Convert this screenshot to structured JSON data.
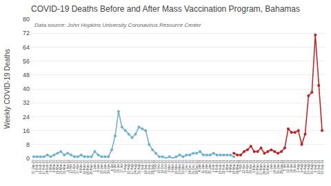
{
  "chart_data": {
    "type": "line",
    "title": "COVID-19 Deaths Before and After Mass Vaccination Program, Bahamas",
    "y_label": "Weekly COVID-19 Deaths",
    "annotations": [
      "Data source: John Hopkins University Coronavirus Resource Center"
    ],
    "categories": [
      "27-Jan-20",
      "3-Feb-20",
      "10-Feb-20",
      "17-Feb-20",
      "24-Feb-20",
      "2-Mar-20",
      "9-Mar-20",
      "16-Mar-20",
      "23-Mar-20",
      "30-Mar-20",
      "6-Apr-20",
      "13-Apr-20",
      "20-Apr-20",
      "27-Apr-20",
      "4-May-20",
      "11-May-20",
      "18-May-20",
      "25-May-20",
      "1-Jun-20",
      "8-Jun-20",
      "15-Jun-20",
      "22-Jun-20",
      "29-Jun-20",
      "6-Jul-20",
      "13-Jul-20",
      "20-Jul-20",
      "27-Jul-20",
      "3-Aug-20",
      "10-Aug-20",
      "17-Aug-20",
      "24-Aug-20",
      "31-Aug-20",
      "7-Sep-20",
      "14-Sep-20",
      "21-Sep-20",
      "28-Sep-20",
      "5-Oct-20",
      "12-Oct-20",
      "19-Oct-20",
      "26-Oct-20",
      "2-Nov-20",
      "9-Nov-20",
      "16-Nov-20",
      "23-Nov-20",
      "30-Nov-20",
      "7-Dec-20",
      "14-Dec-20",
      "21-Dec-20",
      "28-Dec-20",
      "4-Jan-21",
      "11-Jan-21",
      "18-Jan-21",
      "25-Jan-21",
      "1-Feb-21",
      "8-Feb-21",
      "15-Feb-21",
      "22-Feb-21",
      "1-Mar-21",
      "8-Mar-21",
      "15-Mar-21",
      "29-Mar-21",
      "5-Apr-21",
      "12-Apr-21",
      "19-Apr-21",
      "26-Apr-21",
      "3-May-21",
      "10-May-21",
      "17-May-21",
      "24-May-21",
      "31-May-21",
      "7-Jun-21",
      "14-Jun-21",
      "21-Jun-21",
      "28-Jun-21",
      "5-Jul-21",
      "12-Jul-21",
      "19-Jul-21",
      "26-Jul-21",
      "2-Aug-21",
      "9-Aug-21",
      "16-Aug-21",
      "23-Aug-21",
      "30-Aug-21",
      "6-Sep-21",
      "13-Sep-21",
      "20-Sep-21"
    ],
    "series": [
      {
        "color": "#6baed6",
        "marker": "circle",
        "values": [
          1,
          1,
          1,
          1,
          2,
          1,
          2,
          3,
          4,
          2,
          3,
          2,
          1,
          1,
          2,
          1,
          1,
          1,
          4,
          2,
          1,
          1,
          1,
          5,
          13,
          27,
          18,
          16,
          14,
          12,
          14,
          18,
          17,
          16,
          8,
          5,
          3,
          1,
          1,
          0,
          1,
          0,
          1,
          2,
          1,
          2,
          2,
          3,
          3,
          4,
          2,
          2,
          2,
          3,
          2,
          2,
          2,
          2,
          2,
          1,
          null,
          null,
          null,
          null,
          null,
          null,
          null,
          null,
          null,
          null,
          null,
          null,
          null,
          null,
          null,
          null,
          null,
          null,
          null,
          null,
          null,
          null,
          null,
          null,
          null,
          null
        ]
      },
      {
        "color": "#cb181d",
        "marker": "circle",
        "values": [
          null,
          null,
          null,
          null,
          null,
          null,
          null,
          null,
          null,
          null,
          null,
          null,
          null,
          null,
          null,
          null,
          null,
          null,
          null,
          null,
          null,
          null,
          null,
          null,
          null,
          null,
          null,
          null,
          null,
          null,
          null,
          null,
          null,
          null,
          null,
          null,
          null,
          null,
          null,
          null,
          null,
          null,
          null,
          null,
          null,
          null,
          null,
          null,
          null,
          null,
          null,
          null,
          null,
          null,
          null,
          null,
          null,
          null,
          null,
          3,
          2,
          2,
          4,
          5,
          7,
          4,
          4,
          6,
          3,
          4,
          5,
          4,
          3,
          4,
          6,
          17,
          15,
          15,
          16,
          8,
          14,
          36,
          38,
          71,
          42,
          16
        ]
      }
    ],
    "ylim": [
      0,
      80
    ],
    "yticks": [
      0,
      8,
      16,
      24,
      32,
      40,
      48,
      56,
      64,
      72,
      80
    ],
    "grid": true
  }
}
